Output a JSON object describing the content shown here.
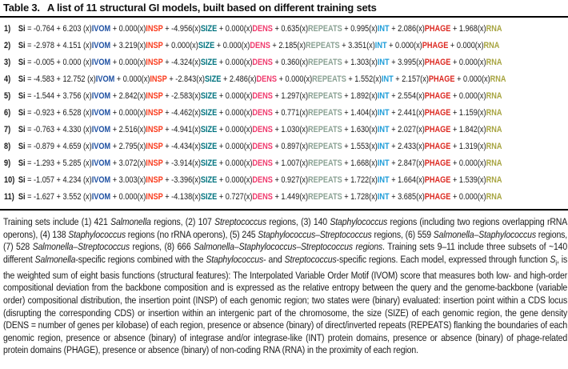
{
  "title": {
    "label": "Table 3.",
    "text": "A list of 11 structural GI models, built based on different training sets"
  },
  "equation": {
    "si_label": "Si",
    "x_notation": "(x)"
  },
  "terms": [
    {
      "key": "IVOM",
      "color": "#1d4fa1"
    },
    {
      "key": "INSP",
      "color": "#f93b1d"
    },
    {
      "key": "SIZE",
      "color": "#00737f"
    },
    {
      "key": "DENS",
      "color": "#ef3a6d"
    },
    {
      "key": "REPEATS",
      "color": "#8ba294"
    },
    {
      "key": "INT",
      "color": "#1d9dd9"
    },
    {
      "key": "PHAGE",
      "color": "#dc2a22"
    },
    {
      "key": "RNA",
      "color": "#a7a440"
    }
  ],
  "models": [
    {
      "num": "1)",
      "intercept": "-0.764",
      "coeffs": [
        "6.203",
        "0.000",
        "-4.956",
        "0.000",
        "0.635",
        "0.995",
        "2.086",
        "1.968"
      ]
    },
    {
      "num": "2)",
      "intercept": "-2.978",
      "coeffs": [
        "4.151",
        "3.219",
        "0.000",
        "0.000",
        "2.185",
        "3.351",
        "0.000",
        "0.000"
      ]
    },
    {
      "num": "3)",
      "intercept": "-0.005",
      "coeffs": [
        "0.000",
        "0.000",
        "-4.324",
        "0.000",
        "0.360",
        "1.303",
        "3.995",
        "0.000"
      ]
    },
    {
      "num": "4)",
      "intercept": "-4.583",
      "coeffs": [
        "12.752",
        "0.000",
        "-2.843",
        "2.486",
        "0.000",
        "1.552",
        "2.157",
        "0.000"
      ]
    },
    {
      "num": "5)",
      "intercept": "-1.544",
      "coeffs": [
        "3.756",
        "2.842",
        "-2.583",
        "0.000",
        "1.297",
        "1.892",
        "2.554",
        "0.000"
      ]
    },
    {
      "num": "6)",
      "intercept": "-0.923",
      "coeffs": [
        "6.528",
        "0.000",
        "-4.462",
        "0.000",
        "0.771",
        "1.404",
        "2.441",
        "1.159"
      ]
    },
    {
      "num": "7)",
      "intercept": "-0.763",
      "coeffs": [
        "4.330",
        "2.516",
        "-4.941",
        "0.000",
        "1.030",
        "1.630",
        "2.027",
        "1.842"
      ]
    },
    {
      "num": "8)",
      "intercept": "-0.879",
      "coeffs": [
        "4.659",
        "2.795",
        "-4.434",
        "0.000",
        "0.897",
        "1.553",
        "2.433",
        "1.319"
      ]
    },
    {
      "num": "9)",
      "intercept": "-1.293",
      "coeffs": [
        "5.285",
        "3.072",
        "-3.914",
        "0.000",
        "1.007",
        "1.668",
        "2.847",
        "0.000"
      ]
    },
    {
      "num": "10)",
      "intercept": "-1.057",
      "coeffs": [
        "4.234",
        "3.003",
        "-3.396",
        "0.000",
        "0.927",
        "1.722",
        "1.664",
        "1.539"
      ]
    },
    {
      "num": "11)",
      "intercept": "-1.627",
      "coeffs": [
        "3.552",
        "0.000",
        "-4.138",
        "0.727",
        "1.449",
        "1.728",
        "3.685",
        "0.000"
      ]
    }
  ],
  "caption": {
    "segments": [
      {
        "s": "n",
        "t": "Training sets include (1) 421 "
      },
      {
        "s": "i",
        "t": "Salmonella"
      },
      {
        "s": "n",
        "t": " regions, (2) 107 "
      },
      {
        "s": "i",
        "t": "Streptococcus"
      },
      {
        "s": "n",
        "t": " regions, (3) 140 "
      },
      {
        "s": "i",
        "t": "Staphylococcus"
      },
      {
        "s": "n",
        "t": " regions (including two regions overlapping rRNA operons), (4) 138 "
      },
      {
        "s": "i",
        "t": "Staphylococcus"
      },
      {
        "s": "n",
        "t": " regions (no rRNA operons), (5) 245 "
      },
      {
        "s": "i",
        "t": "Staphylococcus–Streptococcus"
      },
      {
        "s": "n",
        "t": " regions, (6) 559 "
      },
      {
        "s": "i",
        "t": "Salmonella–Staphylococcus"
      },
      {
        "s": "n",
        "t": " regions, (7) 528 "
      },
      {
        "s": "i",
        "t": "Salmonella–Streptococcus"
      },
      {
        "s": "n",
        "t": " regions, (8) 666 "
      },
      {
        "s": "i",
        "t": "Salmonella–Staphylococcus–Streptococcus regions"
      },
      {
        "s": "n",
        "t": ". Training sets 9–11 include three subsets of ~140 different "
      },
      {
        "s": "i",
        "t": "Salmonella"
      },
      {
        "s": "n",
        "t": "-specific regions combined with the "
      },
      {
        "s": "i",
        "t": "Staphylococcus"
      },
      {
        "s": "n",
        "t": "- and "
      },
      {
        "s": "i",
        "t": "Streptococcus"
      },
      {
        "s": "n",
        "t": "-specific regions. Each model, expressed through function "
      },
      {
        "s": "sub",
        "t": "S|i"
      },
      {
        "s": "n",
        "t": ", is the weighted sum of eight basis functions (structural features): The Interpolated Variable Order Motif (IVOM) score that measures both low- and high-order compositional deviation from the backbone composition and is expressed as the relative entropy between the query and the genome-backbone (variable order) compositional distribution, the insertion point (INSP) of each genomic region; two states were (binary) evaluated: insertion point within a CDS locus (disrupting the corresponding CDS) or insertion within an intergenic part of the chromosome, the size (SIZE) of each genomic region, the gene density (DENS = number of genes per kilobase) of each region, presence or absence (binary) of direct/inverted repeats (REPEATS) flanking the boundaries of each genomic region, presence or absence (binary) of integrase and/or integrase-like (INT) protein domains, presence or absence (binary) of phage-related protein domains (PHAGE), presence or absence (binary) of non-coding RNA (RNA) in the proximity of each region."
      }
    ]
  }
}
